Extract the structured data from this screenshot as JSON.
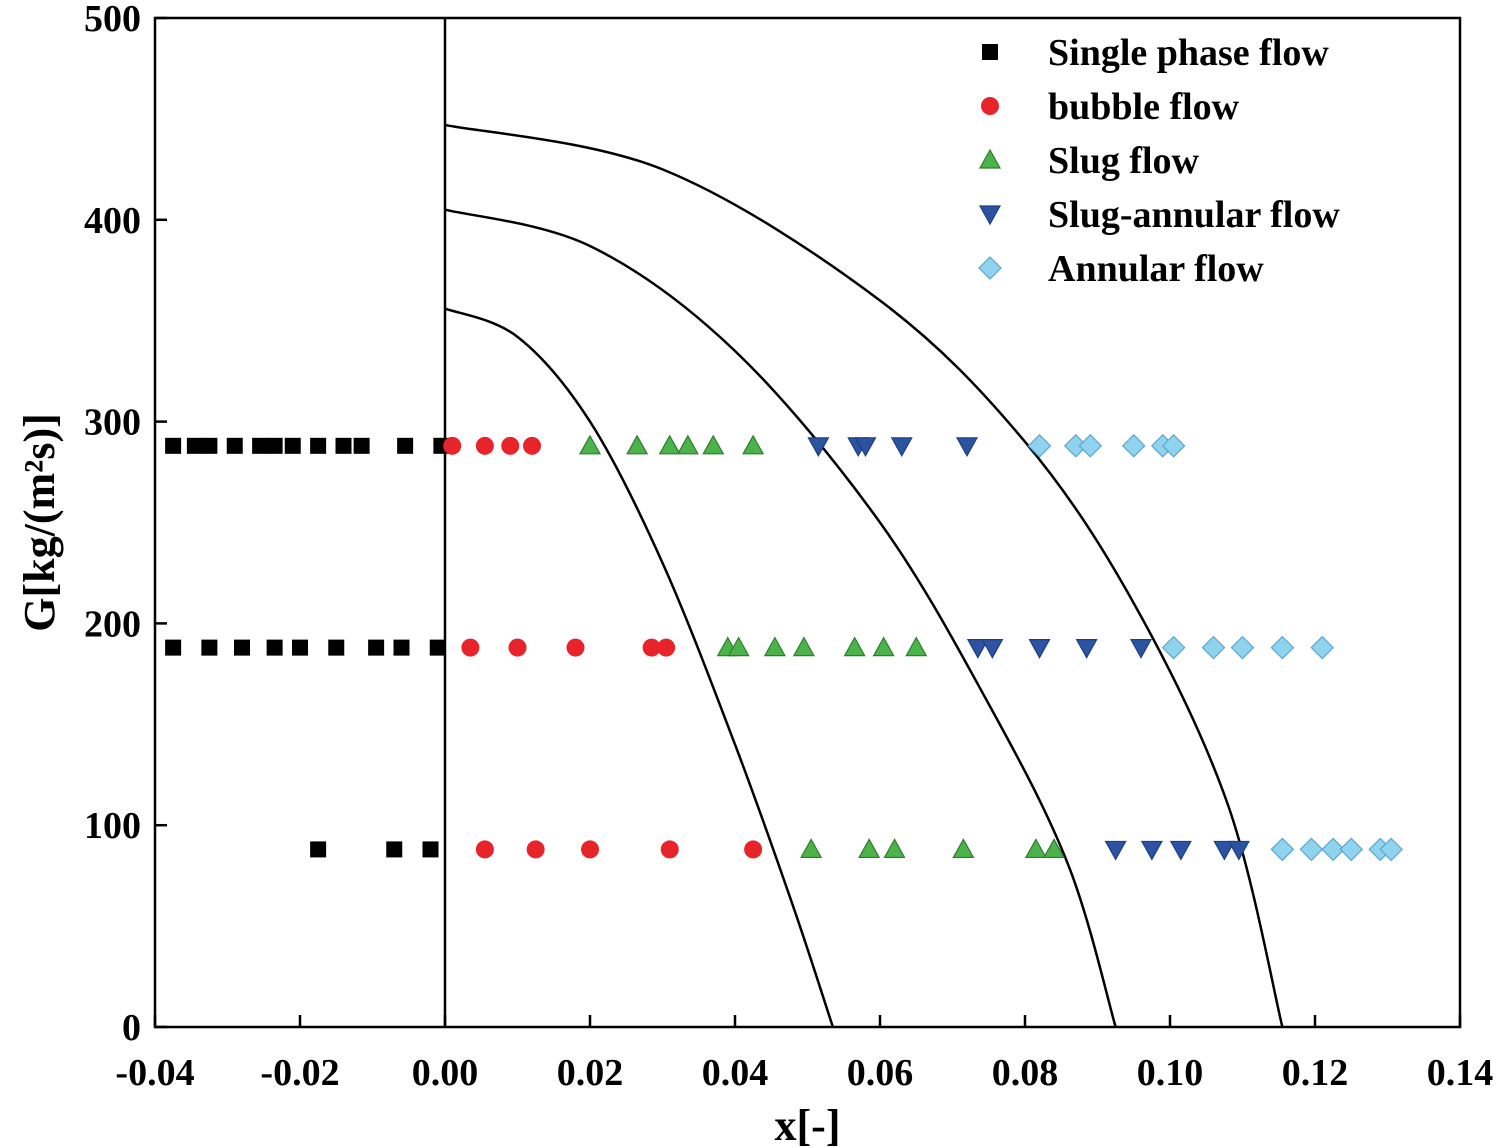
{
  "chart_data": {
    "type": "scatter",
    "title": "",
    "xlabel": "x[-]",
    "ylabel": "G[kg/(m²s)]",
    "xlim": [
      -0.04,
      0.14
    ],
    "ylim": [
      0,
      500
    ],
    "x_ticks": [
      -0.04,
      -0.02,
      0.0,
      0.02,
      0.04,
      0.06,
      0.08,
      0.1,
      0.12,
      0.14
    ],
    "x_tick_labels": [
      "-0.04",
      "-0.02",
      "0.00",
      "0.02",
      "0.04",
      "0.06",
      "0.08",
      "0.10",
      "0.12",
      "0.14"
    ],
    "y_ticks": [
      0,
      100,
      200,
      300,
      400,
      500
    ],
    "y_tick_labels": [
      "0",
      "100",
      "200",
      "300",
      "400",
      "500"
    ],
    "grid": false,
    "legend_position": "top-right",
    "series": [
      {
        "name": "Single phase flow",
        "marker": "square",
        "color": "#000000",
        "points": [
          [
            -0.0375,
            288
          ],
          [
            -0.0345,
            288
          ],
          [
            -0.0325,
            288
          ],
          [
            -0.029,
            288
          ],
          [
            -0.0255,
            288
          ],
          [
            -0.0235,
            288
          ],
          [
            -0.021,
            288
          ],
          [
            -0.0175,
            288
          ],
          [
            -0.014,
            288
          ],
          [
            -0.0115,
            288
          ],
          [
            -0.0055,
            288
          ],
          [
            -0.0005,
            288
          ],
          [
            -0.0375,
            188
          ],
          [
            -0.0325,
            188
          ],
          [
            -0.028,
            188
          ],
          [
            -0.0235,
            188
          ],
          [
            -0.02,
            188
          ],
          [
            -0.015,
            188
          ],
          [
            -0.0095,
            188
          ],
          [
            -0.006,
            188
          ],
          [
            -0.001,
            188
          ],
          [
            -0.0175,
            88
          ],
          [
            -0.007,
            88
          ],
          [
            -0.002,
            88
          ]
        ]
      },
      {
        "name": "bubble flow",
        "marker": "circle",
        "color": "#e8232a",
        "points": [
          [
            0.001,
            288
          ],
          [
            0.0055,
            288
          ],
          [
            0.009,
            288
          ],
          [
            0.012,
            288
          ],
          [
            0.0035,
            188
          ],
          [
            0.01,
            188
          ],
          [
            0.018,
            188
          ],
          [
            0.0285,
            188
          ],
          [
            0.0305,
            188
          ],
          [
            0.0055,
            88
          ],
          [
            0.0125,
            88
          ],
          [
            0.02,
            88
          ],
          [
            0.031,
            88
          ],
          [
            0.0425,
            88
          ]
        ]
      },
      {
        "name": "Slug flow",
        "marker": "triangle-up",
        "color": "#4cb34a",
        "points": [
          [
            0.02,
            288
          ],
          [
            0.0265,
            288
          ],
          [
            0.031,
            288
          ],
          [
            0.0335,
            288
          ],
          [
            0.037,
            288
          ],
          [
            0.0425,
            288
          ],
          [
            0.039,
            188
          ],
          [
            0.0405,
            188
          ],
          [
            0.0455,
            188
          ],
          [
            0.0495,
            188
          ],
          [
            0.0565,
            188
          ],
          [
            0.0605,
            188
          ],
          [
            0.065,
            188
          ],
          [
            0.0505,
            88
          ],
          [
            0.0585,
            88
          ],
          [
            0.062,
            88
          ],
          [
            0.0715,
            88
          ],
          [
            0.0815,
            88
          ],
          [
            0.084,
            88
          ]
        ]
      },
      {
        "name": "Slug-annular flow",
        "marker": "triangle-down",
        "color": "#2c53a2",
        "points": [
          [
            0.0515,
            288
          ],
          [
            0.057,
            288
          ],
          [
            0.058,
            288
          ],
          [
            0.063,
            288
          ],
          [
            0.072,
            288
          ],
          [
            0.0735,
            188
          ],
          [
            0.0755,
            188
          ],
          [
            0.082,
            188
          ],
          [
            0.0885,
            188
          ],
          [
            0.096,
            188
          ],
          [
            0.0925,
            88
          ],
          [
            0.0975,
            88
          ],
          [
            0.1015,
            88
          ],
          [
            0.1075,
            88
          ],
          [
            0.1095,
            88
          ]
        ]
      },
      {
        "name": "Annular flow",
        "marker": "diamond",
        "color": "#8fd3ef",
        "points": [
          [
            0.082,
            288
          ],
          [
            0.087,
            288
          ],
          [
            0.089,
            288
          ],
          [
            0.095,
            288
          ],
          [
            0.099,
            288
          ],
          [
            0.1005,
            288
          ],
          [
            0.1005,
            188
          ],
          [
            0.106,
            188
          ],
          [
            0.11,
            188
          ],
          [
            0.1155,
            188
          ],
          [
            0.121,
            188
          ],
          [
            0.1155,
            88
          ],
          [
            0.1195,
            88
          ],
          [
            0.1225,
            88
          ],
          [
            0.125,
            88
          ],
          [
            0.129,
            88
          ],
          [
            0.1305,
            88
          ]
        ]
      }
    ],
    "transition_curves": [
      {
        "name": "curve-1",
        "points": [
          [
            0.0,
            356
          ],
          [
            0.01,
            342
          ],
          [
            0.02,
            300
          ],
          [
            0.03,
            230
          ],
          [
            0.04,
            140
          ],
          [
            0.048,
            60
          ],
          [
            0.0535,
            0
          ]
        ]
      },
      {
        "name": "curve-2",
        "points": [
          [
            0.0,
            405
          ],
          [
            0.02,
            387
          ],
          [
            0.04,
            335
          ],
          [
            0.06,
            250
          ],
          [
            0.075,
            160
          ],
          [
            0.086,
            80
          ],
          [
            0.0925,
            0
          ]
        ]
      },
      {
        "name": "curve-3",
        "points": [
          [
            0.0,
            447
          ],
          [
            0.03,
            425
          ],
          [
            0.06,
            360
          ],
          [
            0.08,
            290
          ],
          [
            0.095,
            210
          ],
          [
            0.108,
            110
          ],
          [
            0.1155,
            0
          ]
        ]
      }
    ]
  }
}
